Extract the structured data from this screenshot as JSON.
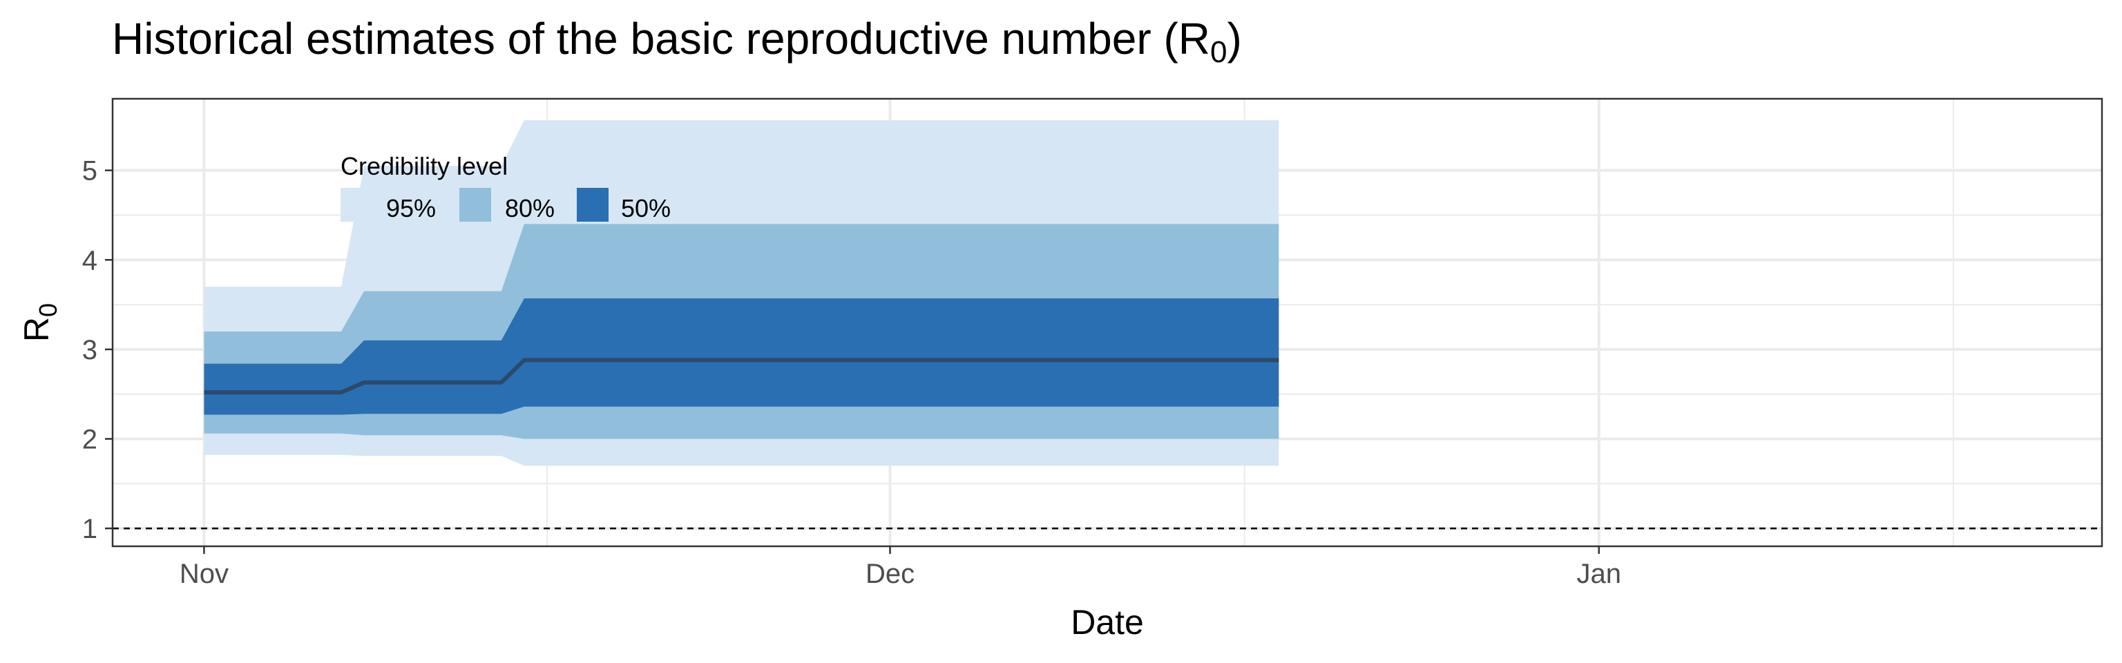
{
  "chart_data": {
    "type": "area",
    "title_main": "Historical estimates of the basic reproductive number (R",
    "title_sub": "0",
    "title_close": ")",
    "xlabel": "Date",
    "ylabel_main": "R",
    "ylabel_sub": "0",
    "x_ticks": [
      "Nov",
      "Dec",
      "Jan"
    ],
    "x_tick_dates": [
      "2020-11-01",
      "2020-12-01",
      "2021-01-01"
    ],
    "xlim": [
      "2020-10-28",
      "2021-01-23"
    ],
    "y_ticks": [
      1,
      2,
      3,
      4,
      5
    ],
    "ylim": [
      0.8,
      5.8
    ],
    "reference_line": 1,
    "grid": true,
    "legend": {
      "title": "Credibility level",
      "placement": "top-left",
      "items": [
        {
          "label": "95%",
          "color": "#d6e6f4"
        },
        {
          "label": "80%",
          "color": "#91bfdb"
        },
        {
          "label": "50%",
          "color": "#2a6fb1"
        }
      ]
    },
    "median_color": "#2b4a6b",
    "segments": [
      {
        "start": "2020-11-01",
        "end": "2020-11-07",
        "median": 2.52,
        "ci50": [
          2.27,
          2.84
        ],
        "ci80": [
          2.06,
          3.2
        ],
        "ci95": [
          1.82,
          3.7
        ]
      },
      {
        "start": "2020-11-08",
        "end": "2020-11-14",
        "median": 2.63,
        "ci50": [
          2.28,
          3.1
        ],
        "ci80": [
          2.04,
          3.65
        ],
        "ci95": [
          1.81,
          5.05
        ]
      },
      {
        "start": "2020-11-15",
        "end": "2020-12-18",
        "median": 2.88,
        "ci50": [
          2.36,
          3.57
        ],
        "ci80": [
          2.0,
          4.4
        ],
        "ci95": [
          1.7,
          5.56
        ]
      }
    ]
  }
}
